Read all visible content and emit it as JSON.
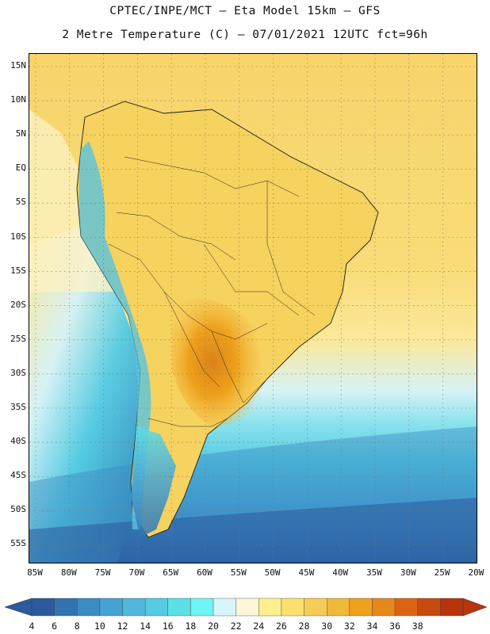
{
  "title_line1": "CPTEC/INPE/MCT –  Eta Model 15km – GFS",
  "title_line2": "2 Metre Temperature (C) – 07/01/2021 12UTC fct=96h",
  "lat_labels": [
    "15N",
    "10N",
    "5N",
    "EQ",
    "5S",
    "10S",
    "15S",
    "20S",
    "25S",
    "30S",
    "35S",
    "40S",
    "45S",
    "50S",
    "55S"
  ],
  "lon_labels": [
    "85W",
    "80W",
    "75W",
    "70W",
    "65W",
    "60W",
    "55W",
    "50W",
    "45W",
    "40W",
    "35W",
    "30W",
    "25W",
    "20W"
  ],
  "colorbar": {
    "levels": [
      "4",
      "6",
      "8",
      "10",
      "12",
      "14",
      "16",
      "18",
      "20",
      "22",
      "24",
      "26",
      "28",
      "30",
      "32",
      "34",
      "36",
      "38"
    ],
    "colors": [
      "#2c5a9c",
      "#3173b1",
      "#3b8bc4",
      "#45a2d3",
      "#4fb8dc",
      "#54cbe2",
      "#5ddfe6",
      "#6ff5f6",
      "#d6f6fb",
      "#fdf6d8",
      "#fdf08e",
      "#fae06e",
      "#f5cc55",
      "#f0b93a",
      "#eea11b",
      "#e6861b",
      "#db6414",
      "#c84a0f",
      "#b8340d"
    ],
    "min_arrow_color": "#2c5a9c",
    "max_arrow_color": "#b8340d"
  }
}
